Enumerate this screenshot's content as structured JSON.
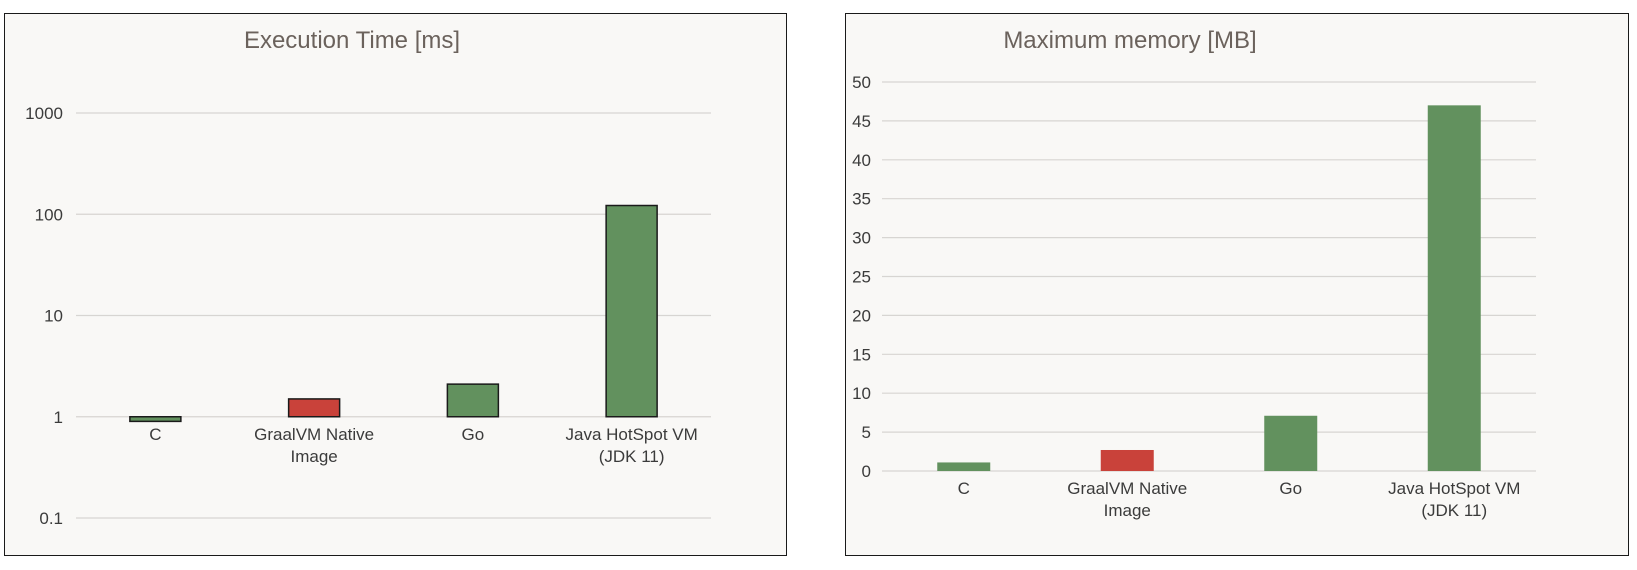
{
  "chart_data": [
    {
      "type": "bar",
      "title": "Execution Time [ms]",
      "yscale": "log",
      "ylim": [
        0.1,
        1000
      ],
      "yticks": [
        "0.1",
        "1",
        "10",
        "100",
        "1000"
      ],
      "grid": true,
      "categories": [
        [
          "C"
        ],
        [
          "GraalVM Native",
          "Image"
        ],
        [
          "Go"
        ],
        [
          "Java HotSpot VM",
          "(JDK 11)"
        ]
      ],
      "values": [
        0.9,
        1.5,
        2.1,
        122
      ],
      "colors": [
        "#62915e",
        "#c9423a",
        "#62915e",
        "#62915e"
      ],
      "bar_outline": "#1a1a1a"
    },
    {
      "type": "bar",
      "title": "Maximum memory [MB]",
      "yscale": "linear",
      "ylim": [
        0,
        50
      ],
      "yticks": [
        "0",
        "5",
        "10",
        "15",
        "20",
        "25",
        "30",
        "35",
        "40",
        "45",
        "50"
      ],
      "grid": true,
      "categories": [
        [
          "C"
        ],
        [
          "GraalVM Native",
          "Image"
        ],
        [
          "Go"
        ],
        [
          "Java HotSpot VM",
          "(JDK 11)"
        ]
      ],
      "values": [
        1.1,
        2.7,
        7.1,
        47
      ],
      "colors": [
        "#62915e",
        "#c9423a",
        "#62915e",
        "#62915e"
      ]
    }
  ]
}
